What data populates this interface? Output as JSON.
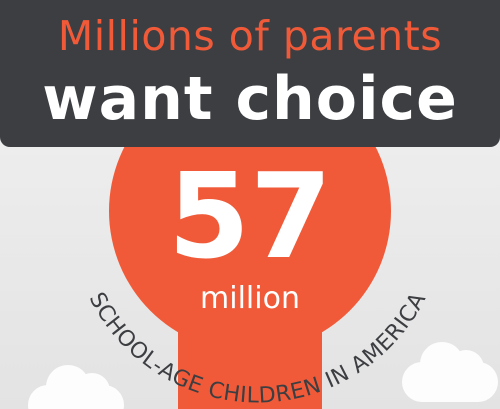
{
  "headline": {
    "line1": "Millions of parents",
    "line2": "want choice"
  },
  "stat": {
    "value": "57",
    "unit": "million",
    "caption": "SCHOOL-AGE CHILDREN IN AMERICA"
  },
  "colors": {
    "accent": "#f05a38",
    "header_bg": "#3c3e42",
    "text_light": "#ffffff",
    "caption_text": "#3c3e42"
  }
}
